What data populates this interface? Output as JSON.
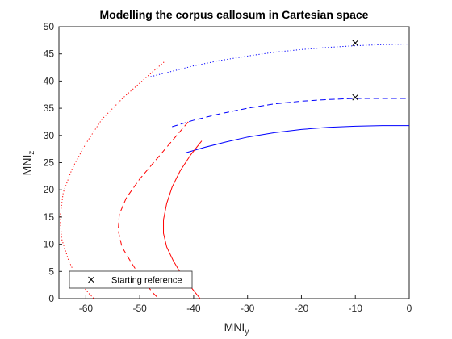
{
  "chart_data": {
    "type": "line",
    "title": "Modelling the corpus callosum in Cartesian space",
    "xlabel": {
      "main": "MNI",
      "sub": "y"
    },
    "ylabel": {
      "main": "MNI",
      "sub": "z"
    },
    "xlim": [
      -65,
      0
    ],
    "ylim": [
      0,
      50
    ],
    "xticks": [
      -60,
      -50,
      -40,
      -30,
      -20,
      -10,
      0
    ],
    "yticks": [
      0,
      5,
      10,
      15,
      20,
      25,
      30,
      35,
      40,
      45,
      50
    ],
    "xtick_labels": [
      "-60",
      "-50",
      "-40",
      "-30",
      "-20",
      "-10",
      "0"
    ],
    "ytick_labels": [
      "0",
      "5",
      "10",
      "15",
      "20",
      "25",
      "30",
      "35",
      "40",
      "45",
      "50"
    ],
    "grid": false,
    "legend": {
      "position": "bottom-left",
      "entries": [
        {
          "label": "Starting reference",
          "marker": "x",
          "color": "#000000"
        }
      ]
    },
    "series": [
      {
        "style": "solid",
        "color": "#0000ff",
        "x": [
          -41.5,
          -38,
          -34,
          -30,
          -25,
          -20,
          -15,
          -10,
          -5,
          0
        ],
        "y": [
          26.8,
          27.8,
          28.8,
          29.7,
          30.5,
          31.1,
          31.5,
          31.7,
          31.8,
          31.8
        ]
      },
      {
        "style": "dashed",
        "color": "#0000ff",
        "x": [
          -44,
          -40,
          -35,
          -30,
          -25,
          -20,
          -15,
          -10,
          -5,
          0
        ],
        "y": [
          31.6,
          32.8,
          34.0,
          35.0,
          35.8,
          36.3,
          36.6,
          36.8,
          36.8,
          36.8
        ]
      },
      {
        "style": "dotted",
        "color": "#0000ff",
        "x": [
          -48,
          -44,
          -40,
          -35,
          -30,
          -25,
          -20,
          -15,
          -10,
          -5,
          0
        ],
        "y": [
          40.8,
          41.8,
          42.8,
          43.8,
          44.6,
          45.3,
          45.8,
          46.2,
          46.5,
          46.7,
          46.8
        ]
      },
      {
        "style": "solid",
        "color": "#ff0000",
        "x": [
          -38.5,
          -40.5,
          -42.5,
          -44,
          -45,
          -45.6,
          -45.6,
          -45,
          -43.8,
          -42,
          -40,
          -38.8
        ],
        "y": [
          29,
          26.5,
          23.5,
          20.5,
          17.5,
          14.5,
          12,
          9.5,
          7,
          4,
          1.5,
          0
        ]
      },
      {
        "style": "dashed",
        "color": "#ff0000",
        "x": [
          -41,
          -44,
          -47,
          -50,
          -52.5,
          -53.8,
          -54,
          -53.3,
          -51.5,
          -49.5,
          -47.5,
          -46.5
        ],
        "y": [
          32.5,
          29,
          25.5,
          22,
          18.5,
          15.5,
          12.5,
          9.5,
          6.5,
          3.5,
          1,
          0
        ]
      },
      {
        "style": "dotted",
        "color": "#ff0000",
        "x": [
          -45.5,
          -49,
          -53,
          -57,
          -60,
          -62.5,
          -64.2,
          -64.8,
          -64.5,
          -63.2,
          -61.5,
          -59.5,
          -58.5
        ],
        "y": [
          43.5,
          40.5,
          37,
          33,
          28.5,
          24,
          19.5,
          15,
          11,
          7,
          3.5,
          1,
          0
        ]
      }
    ],
    "markers": [
      {
        "x": -10,
        "y": 47,
        "symbol": "x",
        "color": "#000000"
      },
      {
        "x": -10,
        "y": 37,
        "symbol": "x",
        "color": "#000000"
      }
    ]
  }
}
